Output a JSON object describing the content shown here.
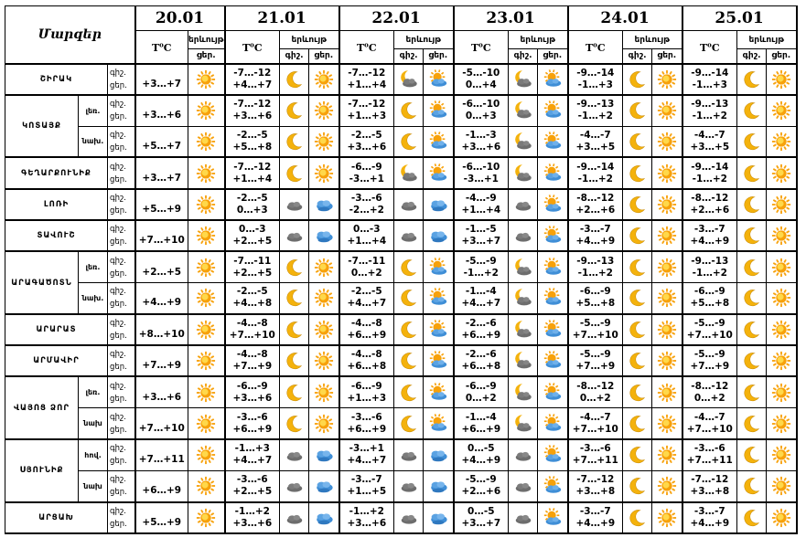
{
  "header": {
    "corner": "Մարզեր",
    "dates": [
      "20.01",
      "21.01",
      "22.01",
      "23.01",
      "24.01",
      "25.01"
    ],
    "temp_label": "T",
    "temp_sup": "o",
    "temp_unit": "C",
    "weather_label": "երևույթ",
    "night_label": "գիշ.",
    "day_label": "ցեր."
  },
  "rows": [
    {
      "region": "ՇԻՐԱԿ",
      "sub": "",
      "d20": {
        "t": "+3…+7",
        "i": "sun"
      },
      "days": [
        {
          "n": "-7…-12",
          "d": "+4…+7",
          "in": "moon",
          "id": "sun"
        },
        {
          "n": "-7…-12",
          "d": "+1…+4",
          "in": "cloud-moon",
          "id": "sun-cloud"
        },
        {
          "n": "-5…-10",
          "d": "0…+4",
          "in": "cloud-moon",
          "id": "sun-cloud"
        },
        {
          "n": "-9…-14",
          "d": "-1…+3",
          "in": "moon",
          "id": "sun"
        },
        {
          "n": "-9…-14",
          "d": "-1…+3",
          "in": "moon",
          "id": "sun"
        }
      ]
    },
    {
      "region": "ԿՈՏԱՅՔ",
      "sub": "լեռ.",
      "d20": {
        "t": "+3…+6",
        "i": "sun"
      },
      "days": [
        {
          "n": "-7…-12",
          "d": "+3…+6",
          "in": "moon",
          "id": "sun"
        },
        {
          "n": "-7…-12",
          "d": "+1…+3",
          "in": "moon",
          "id": "sun-cloud"
        },
        {
          "n": "-6…-10",
          "d": "0…+3",
          "in": "cloud-moon",
          "id": "sun-cloud"
        },
        {
          "n": "-9…-13",
          "d": "-1…+2",
          "in": "moon",
          "id": "sun"
        },
        {
          "n": "-9…-13",
          "d": "-1…+2",
          "in": "moon",
          "id": "sun"
        }
      ]
    },
    {
      "region": "",
      "sub": "նախ.",
      "d20": {
        "t": "+5…+7",
        "i": "sun"
      },
      "days": [
        {
          "n": "-2…-5",
          "d": "+5…+8",
          "in": "moon",
          "id": "sun"
        },
        {
          "n": "-2…-5",
          "d": "+3…+6",
          "in": "moon",
          "id": "sun-cloud"
        },
        {
          "n": "-1…-3",
          "d": "+3…+6",
          "in": "cloud-moon",
          "id": "sun-cloud"
        },
        {
          "n": "-4…-7",
          "d": "+3…+5",
          "in": "moon",
          "id": "sun"
        },
        {
          "n": "-4…-7",
          "d": "+3…+5",
          "in": "moon",
          "id": "sun"
        }
      ]
    },
    {
      "region": "ԳԵՂԱՐՔՈՒՆԻՔ",
      "sub": "",
      "d20": {
        "t": "+3…+7",
        "i": "sun"
      },
      "days": [
        {
          "n": "-7…-12",
          "d": "+1…+4",
          "in": "moon",
          "id": "sun"
        },
        {
          "n": "-6…-9",
          "d": "-3…+1",
          "in": "cloud-moon",
          "id": "sun-cloud"
        },
        {
          "n": "-6…-10",
          "d": "-3…+1",
          "in": "cloud-moon",
          "id": "sun-cloud"
        },
        {
          "n": "-9…-14",
          "d": "-1…+2",
          "in": "moon",
          "id": "sun"
        },
        {
          "n": "-9…-14",
          "d": "-1…+2",
          "in": "moon",
          "id": "sun"
        }
      ]
    },
    {
      "region": "ԼՈՌԻ",
      "sub": "",
      "d20": {
        "t": "+5…+9",
        "i": "sun"
      },
      "days": [
        {
          "n": "-2…-5",
          "d": "0…+3",
          "in": "cloud",
          "id": "clouds"
        },
        {
          "n": "-3…-6",
          "d": "-2…+2",
          "in": "cloud",
          "id": "clouds"
        },
        {
          "n": "-4…-9",
          "d": "+1…+4",
          "in": "cloud",
          "id": "sun-cloud"
        },
        {
          "n": "-8…-12",
          "d": "+2…+6",
          "in": "moon",
          "id": "sun"
        },
        {
          "n": "-8…-12",
          "d": "+2…+6",
          "in": "moon",
          "id": "sun"
        }
      ]
    },
    {
      "region": "ՏԱՎՈՒՇ",
      "sub": "",
      "d20": {
        "t": "+7…+10",
        "i": "sun"
      },
      "days": [
        {
          "n": "0…-3",
          "d": "+2…+5",
          "in": "cloud",
          "id": "clouds"
        },
        {
          "n": "0…-3",
          "d": "+1…+4",
          "in": "cloud",
          "id": "clouds"
        },
        {
          "n": "-1…-5",
          "d": "+3…+7",
          "in": "cloud",
          "id": "sun-cloud"
        },
        {
          "n": "-3…-7",
          "d": "+4…+9",
          "in": "moon",
          "id": "sun"
        },
        {
          "n": "-3…-7",
          "d": "+4…+9",
          "in": "moon",
          "id": "sun"
        }
      ]
    },
    {
      "region": "ԱՐԱԳԱԾՈՏՆ",
      "sub": "լեռ.",
      "d20": {
        "t": "+2…+5",
        "i": "sun"
      },
      "days": [
        {
          "n": "-7…-11",
          "d": "+2…+5",
          "in": "moon",
          "id": "sun"
        },
        {
          "n": "-7…-11",
          "d": "0…+2",
          "in": "moon",
          "id": "sun-cloud"
        },
        {
          "n": "-5…-9",
          "d": "-1…+2",
          "in": "cloud-moon",
          "id": "sun-cloud"
        },
        {
          "n": "-9…-13",
          "d": "-1…+2",
          "in": "moon",
          "id": "sun"
        },
        {
          "n": "-9…-13",
          "d": "-1…+2",
          "in": "moon",
          "id": "sun"
        }
      ]
    },
    {
      "region": "",
      "sub": "նախ.",
      "d20": {
        "t": "+4…+9",
        "i": "sun"
      },
      "days": [
        {
          "n": "-2…-5",
          "d": "+4…+8",
          "in": "moon",
          "id": "sun"
        },
        {
          "n": "-2…-5",
          "d": "+4…+7",
          "in": "moon",
          "id": "sun-cloud"
        },
        {
          "n": "-1…-4",
          "d": "+4…+7",
          "in": "cloud-moon",
          "id": "sun-cloud"
        },
        {
          "n": "-6…-9",
          "d": "+5…+8",
          "in": "moon",
          "id": "sun"
        },
        {
          "n": "-6…-9",
          "d": "+5…+8",
          "in": "moon",
          "id": "sun"
        }
      ]
    },
    {
      "region": "ԱՐԱՐԱՏ",
      "sub": "",
      "d20": {
        "t": "+8…+10",
        "i": "sun"
      },
      "days": [
        {
          "n": "-4…-8",
          "d": "+7…+10",
          "in": "moon",
          "id": "sun"
        },
        {
          "n": "-4…-8",
          "d": "+6…+9",
          "in": "moon",
          "id": "sun-cloud"
        },
        {
          "n": "-2…-6",
          "d": "+6…+9",
          "in": "cloud-moon",
          "id": "sun-cloud"
        },
        {
          "n": "-5…-9",
          "d": "+7…+10",
          "in": "moon",
          "id": "sun"
        },
        {
          "n": "-5…-9",
          "d": "+7…+10",
          "in": "moon",
          "id": "sun"
        }
      ]
    },
    {
      "region": "ԱՐՄԱՎԻՐ",
      "sub": "",
      "d20": {
        "t": "+7…+9",
        "i": "sun"
      },
      "days": [
        {
          "n": "-4…-8",
          "d": "+7…+9",
          "in": "moon",
          "id": "sun"
        },
        {
          "n": "-4…-8",
          "d": "+6…+8",
          "in": "moon",
          "id": "sun-cloud"
        },
        {
          "n": "-2…-6",
          "d": "+6…+8",
          "in": "cloud-moon",
          "id": "sun-cloud"
        },
        {
          "n": "-5…-9",
          "d": "+7…+9",
          "in": "moon",
          "id": "sun"
        },
        {
          "n": "-5…-9",
          "d": "+7…+9",
          "in": "moon",
          "id": "sun"
        }
      ]
    },
    {
      "region": "ՎԱՅՈՑ ՁՈՐ",
      "sub": "լեռ.",
      "d20": {
        "t": "+3…+6",
        "i": "sun"
      },
      "days": [
        {
          "n": "-6…-9",
          "d": "+3…+6",
          "in": "moon",
          "id": "sun"
        },
        {
          "n": "-6…-9",
          "d": "+1…+3",
          "in": "moon",
          "id": "sun-cloud"
        },
        {
          "n": "-6…-9",
          "d": "0…+2",
          "in": "cloud-moon",
          "id": "sun-cloud"
        },
        {
          "n": "-8…-12",
          "d": "0…+2",
          "in": "moon",
          "id": "sun"
        },
        {
          "n": "-8…-12",
          "d": "0…+2",
          "in": "moon",
          "id": "sun"
        }
      ]
    },
    {
      "region": "",
      "sub": "նախ",
      "d20": {
        "t": "+7…+10",
        "i": "sun"
      },
      "days": [
        {
          "n": "-3…-6",
          "d": "+6…+9",
          "in": "moon",
          "id": "sun"
        },
        {
          "n": "-3…-6",
          "d": "+6…+9",
          "in": "moon",
          "id": "sun-cloud"
        },
        {
          "n": "-1…-4",
          "d": "+6…+9",
          "in": "cloud-moon",
          "id": "sun-cloud"
        },
        {
          "n": "-4…-7",
          "d": "+7…+10",
          "in": "moon",
          "id": "sun"
        },
        {
          "n": "-4…-7",
          "d": "+7…+10",
          "in": "moon",
          "id": "sun"
        }
      ]
    },
    {
      "region": "ՍՅՈՒՆԻՔ",
      "sub": "հով.",
      "d20": {
        "t": "+7…+11",
        "i": "sun"
      },
      "days": [
        {
          "n": "-1…+3",
          "d": "+4…+7",
          "in": "cloud",
          "id": "clouds"
        },
        {
          "n": "-3…+1",
          "d": "+4…+7",
          "in": "cloud",
          "id": "clouds"
        },
        {
          "n": "0…-5",
          "d": "+4…+9",
          "in": "cloud",
          "id": "sun-cloud"
        },
        {
          "n": "-3…-6",
          "d": "+7…+11",
          "in": "moon",
          "id": "sun"
        },
        {
          "n": "-3…-6",
          "d": "+7…+11",
          "in": "moon",
          "id": "sun"
        }
      ]
    },
    {
      "region": "",
      "sub": "նախ",
      "d20": {
        "t": "+6…+9",
        "i": "sun"
      },
      "days": [
        {
          "n": "-3…-6",
          "d": "+2…+5",
          "in": "cloud",
          "id": "clouds"
        },
        {
          "n": "-3…-7",
          "d": "+1…+5",
          "in": "cloud",
          "id": "clouds"
        },
        {
          "n": "-5…-9",
          "d": "+2…+6",
          "in": "cloud",
          "id": "sun-cloud"
        },
        {
          "n": "-7…-12",
          "d": "+3…+8",
          "in": "moon",
          "id": "sun"
        },
        {
          "n": "-7…-12",
          "d": "+3…+8",
          "in": "moon",
          "id": "sun"
        }
      ]
    },
    {
      "region": "ԱՐՑԱԽ",
      "sub": "",
      "d20": {
        "t": "+5…+9",
        "i": "sun"
      },
      "days": [
        {
          "n": "-1…+2",
          "d": "+3…+6",
          "in": "cloud",
          "id": "clouds"
        },
        {
          "n": "-1…+2",
          "d": "+3…+6",
          "in": "cloud",
          "id": "clouds"
        },
        {
          "n": "0…-5",
          "d": "+3…+7",
          "in": "cloud",
          "id": "sun-cloud"
        },
        {
          "n": "-3…-7",
          "d": "+4…+9",
          "in": "moon",
          "id": "sun"
        },
        {
          "n": "-3…-7",
          "d": "+4…+9",
          "in": "moon",
          "id": "sun"
        }
      ]
    }
  ],
  "colors": {
    "sun": "#f7a10a",
    "sun_core": "#ffd84a",
    "moon": "#f4b20c",
    "cloud_dark": "#6d6d6d",
    "cloud_blue": "#3f8ed6"
  }
}
